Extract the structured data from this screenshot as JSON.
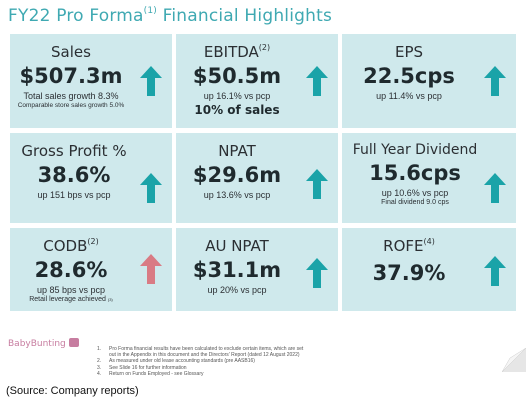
{
  "title": {
    "text": "FY22 Pro Forma",
    "sup": "(1)",
    "rest": " Financial Highlights"
  },
  "colors": {
    "tile": "#cfe9ec",
    "accent": "#3fa9b2",
    "arrow_up": "#1aa3a8",
    "arrow_down": "#d97b84"
  },
  "tiles": [
    {
      "label": "Sales",
      "sup": "",
      "value": "$507.3m",
      "sub": "Total sales growth 8.3%",
      "sub2": "Comparable store sales growth 5.0%",
      "arrow": "up-arrow-icon"
    },
    {
      "label": "EBITDA",
      "sup": "(2)",
      "value": "$50.5m",
      "sub": "up 16.1% vs pcp",
      "big_sub": "10% of sales",
      "arrow": "up-arrow-icon"
    },
    {
      "label": "EPS",
      "sup": "",
      "value": "22.5cps",
      "sub": "up 11.4% vs pcp",
      "arrow": "up-arrow-icon"
    },
    {
      "label": "Gross Profit %",
      "sup": "",
      "value": "38.6%",
      "sub": "up 151 bps vs pcp",
      "arrow": "up-arrow-icon"
    },
    {
      "label": "NPAT",
      "sup": "",
      "value": "$29.6m",
      "sub": "up 13.6% vs pcp",
      "arrow": "up-arrow-icon"
    },
    {
      "label": "Full Year Dividend",
      "sup": "",
      "value": "15.6cps",
      "sub": "up 10.6% vs pcp",
      "sub2": "Final dividend 9.0 cps",
      "arrow": "up-arrow-icon"
    },
    {
      "label": "CODB",
      "sup": "(2)",
      "value": "28.6%",
      "sub": "up 85 bps vs pcp",
      "sub2": "Retail leverage achieved",
      "sub2_sup": "(3)",
      "arrow": "up-arrow-red-icon"
    },
    {
      "label": "AU NPAT",
      "sup": "",
      "value": "$31.1m",
      "sub": "up 20% vs pcp",
      "arrow": "up-arrow-icon"
    },
    {
      "label": "ROFE",
      "sup": "(4)",
      "value": "37.9%",
      "sub": "",
      "arrow": "up-arrow-icon"
    }
  ],
  "footer": {
    "logo": "BabyBunting",
    "notes": [
      {
        "n": "1.",
        "text": "Pro Forma financial results have been calculated to exclude certain items, which are set"
      },
      {
        "n": "",
        "text": "out in the Appendix in this document and the Directors' Report (dated 12 August 2022)"
      },
      {
        "n": "2.",
        "text": "As measured under old lease accounting standards (pre AASB16)"
      },
      {
        "n": "3.",
        "text": "See Slide 16 for further information"
      },
      {
        "n": "4.",
        "text": "Return on Funds Employed - see Glossary"
      }
    ]
  },
  "source": "(Source: Company reports)"
}
